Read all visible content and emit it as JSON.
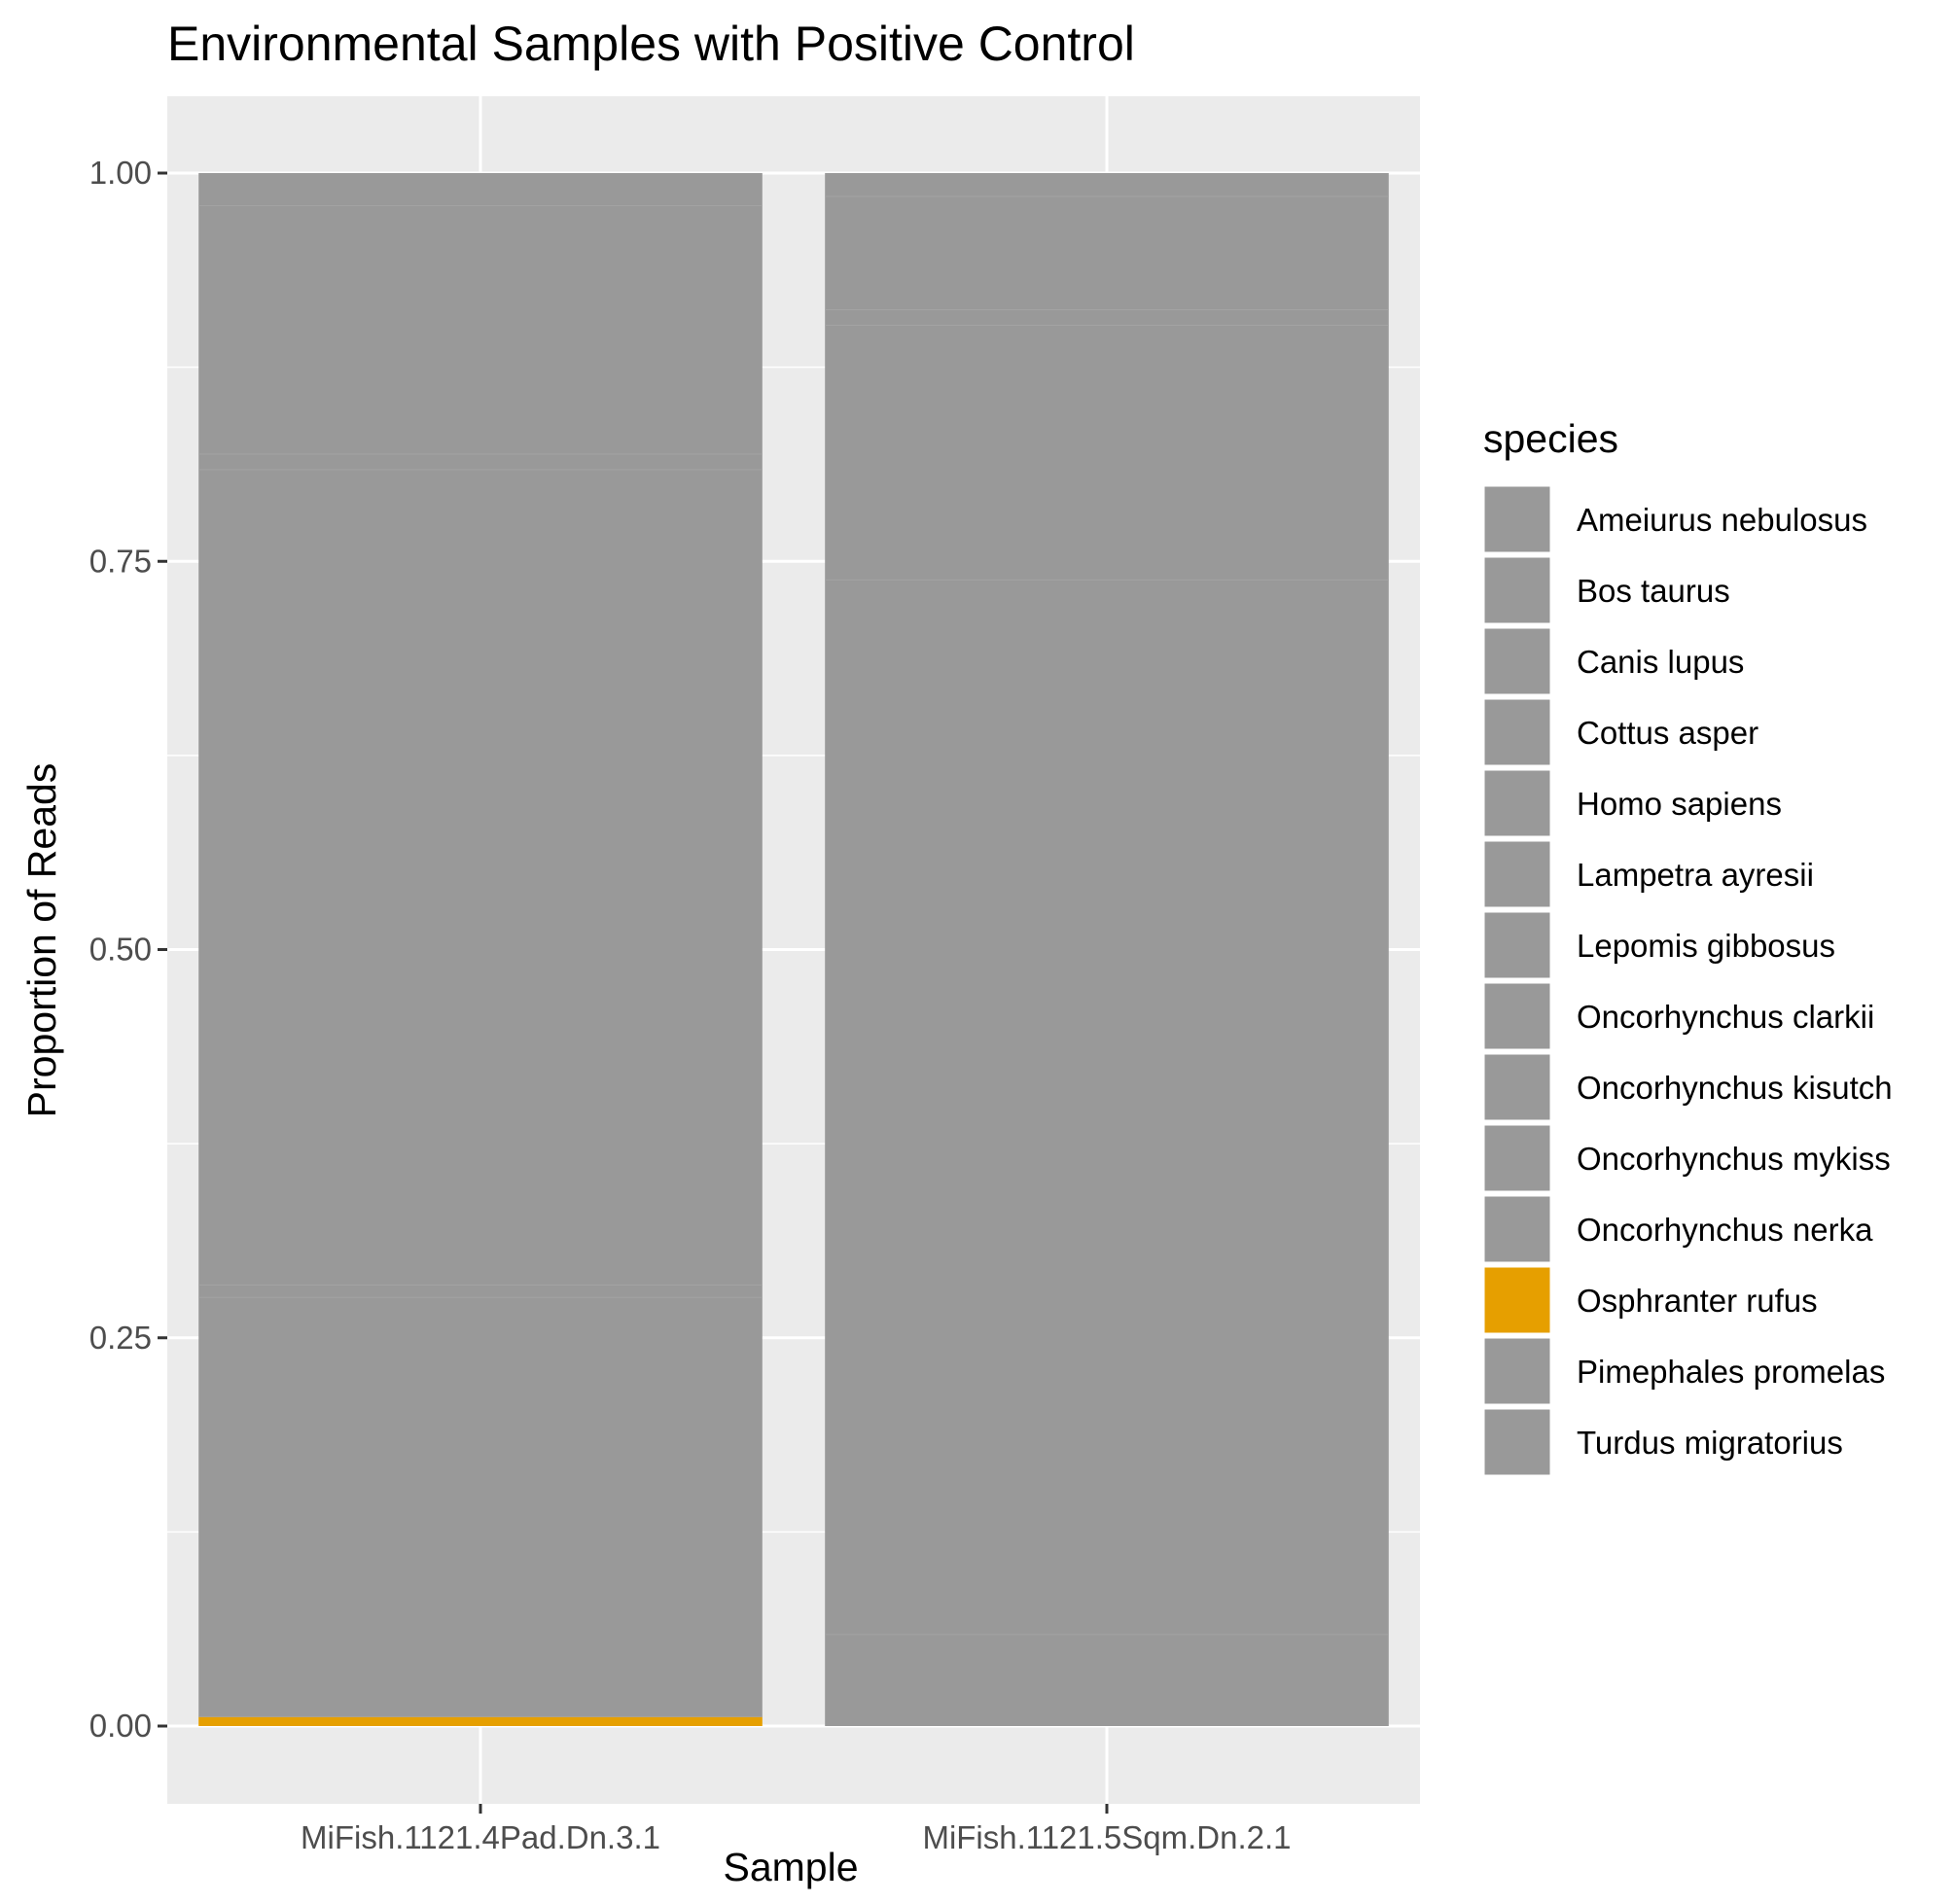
{
  "chart_data": {
    "type": "bar",
    "stacked": true,
    "title": "Environmental Samples with Positive Control",
    "xlabel": "Sample",
    "ylabel": "Proportion of Reads",
    "ylim": [
      -0.05,
      1.05
    ],
    "yticks": [
      "0.00",
      "0.25",
      "0.50",
      "0.75",
      "1.00"
    ],
    "ytick_values": [
      0,
      0.25,
      0.5,
      0.75,
      1.0
    ],
    "categories": [
      "MiFish.1121.4Pad.Dn.3.1",
      "MiFish.1121.5Sqm.Dn.2.1"
    ],
    "grid": true,
    "legend_placement": "right",
    "legend_title": "species",
    "colors": {
      "panel_background": "#ebebeb",
      "gridline": "#ffffff",
      "default_fill": "#999999",
      "highlight_fill": "#e69f00"
    },
    "series": [
      {
        "name": "Ameiurus nebulosus",
        "color": "#999999",
        "values": [
          0.0,
          0.0
        ]
      },
      {
        "name": "Bos taurus",
        "color": "#999999",
        "values": [
          0.0,
          0.0
        ]
      },
      {
        "name": "Canis lupus",
        "color": "#999999",
        "values": [
          0.0,
          0.0
        ]
      },
      {
        "name": "Cottus asper",
        "color": "#999999",
        "values": [
          0.021,
          0.015
        ]
      },
      {
        "name": "Homo sapiens",
        "color": "#999999",
        "values": [
          0.0,
          0.0
        ]
      },
      {
        "name": "Lampetra ayresii",
        "color": "#999999",
        "values": [
          0.16,
          0.073
        ]
      },
      {
        "name": "Lepomis gibbosus",
        "color": "#999999",
        "values": [
          0.0,
          0.0
        ]
      },
      {
        "name": "Oncorhynchus clarkii",
        "color": "#999999",
        "values": [
          0.01,
          0.01
        ]
      },
      {
        "name": "Oncorhynchus kisutch",
        "color": "#999999",
        "values": [
          0.525,
          0.164
        ]
      },
      {
        "name": "Oncorhynchus mykiss",
        "color": "#999999",
        "values": [
          0.008,
          0.679
        ]
      },
      {
        "name": "Oncorhynchus nerka",
        "color": "#999999",
        "values": [
          0.27,
          0.059
        ]
      },
      {
        "name": "Osphranter rufus",
        "color": "#e69f00",
        "values": [
          0.006,
          0.0
        ]
      },
      {
        "name": "Pimephales promelas",
        "color": "#999999",
        "values": [
          0.0,
          0.0
        ]
      },
      {
        "name": "Turdus migratorius",
        "color": "#999999",
        "values": [
          0.0,
          0.0
        ]
      }
    ]
  }
}
